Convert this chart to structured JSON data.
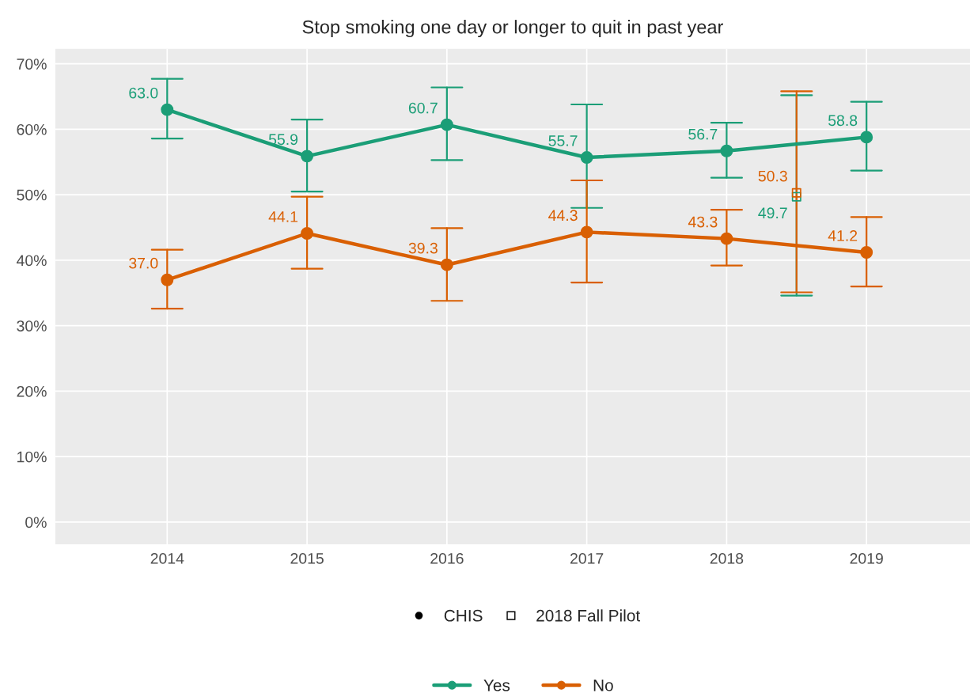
{
  "chart_data": {
    "type": "line",
    "title": "Stop smoking one day or longer to quit in past year",
    "x": [
      2014,
      2015,
      2016,
      2017,
      2018,
      2019
    ],
    "xlim": [
      2013.2,
      2019.74
    ],
    "xticks": [
      2014,
      2015,
      2016,
      2017,
      2018,
      2019
    ],
    "ylim": [
      -3.4,
      72.3
    ],
    "yticks": [
      {
        "value": 0,
        "label": "0%"
      },
      {
        "value": 10,
        "label": "10%"
      },
      {
        "value": 20,
        "label": "20%"
      },
      {
        "value": 30,
        "label": "30%"
      },
      {
        "value": 40,
        "label": "40%"
      },
      {
        "value": 50,
        "label": "50%"
      },
      {
        "value": 60,
        "label": "60%"
      },
      {
        "value": 70,
        "label": "70%"
      }
    ],
    "grid": true,
    "legend": "bottom",
    "marker": "circle",
    "line_style": "solid",
    "annotations": [
      "CHIS",
      "2018 Fall Pilot"
    ],
    "series": [
      {
        "name": "Yes",
        "color": "#1b9e77",
        "values": [
          63.0,
          55.9,
          60.7,
          55.7,
          56.7,
          58.8
        ],
        "value_labels": [
          "63.0",
          "55.9",
          "60.7",
          "55.7",
          "56.7",
          "58.8"
        ],
        "errors": [
          [
            58.6,
            67.7
          ],
          [
            50.5,
            61.5
          ],
          [
            55.3,
            66.4
          ],
          [
            48.0,
            63.8
          ],
          [
            52.6,
            61.0
          ],
          [
            53.7,
            64.2
          ]
        ]
      },
      {
        "name": "No",
        "color": "#d95f02",
        "values": [
          37.0,
          44.1,
          39.3,
          44.3,
          43.3,
          41.2
        ],
        "value_labels": [
          "37.0",
          "44.1",
          "39.3",
          "44.3",
          "43.3",
          "41.2"
        ],
        "errors": [
          [
            32.6,
            41.6
          ],
          [
            38.7,
            49.7
          ],
          [
            33.8,
            44.9
          ],
          [
            36.6,
            52.2
          ],
          [
            39.2,
            47.7
          ],
          [
            36.0,
            46.6
          ]
        ]
      },
      {
        "type": "scatter",
        "marker": "square",
        "color": "#1b9e77",
        "x": [
          2018.5
        ],
        "values": [
          49.7
        ],
        "value_labels": [
          "49.7"
        ],
        "errors": [
          [
            34.6,
            65.2
          ]
        ]
      },
      {
        "type": "scatter",
        "marker": "square",
        "color": "#d95f02",
        "x": [
          2018.5
        ],
        "values": [
          50.3
        ],
        "value_labels": [
          "50.3"
        ],
        "errors": [
          [
            35.1,
            65.8
          ]
        ]
      }
    ]
  }
}
